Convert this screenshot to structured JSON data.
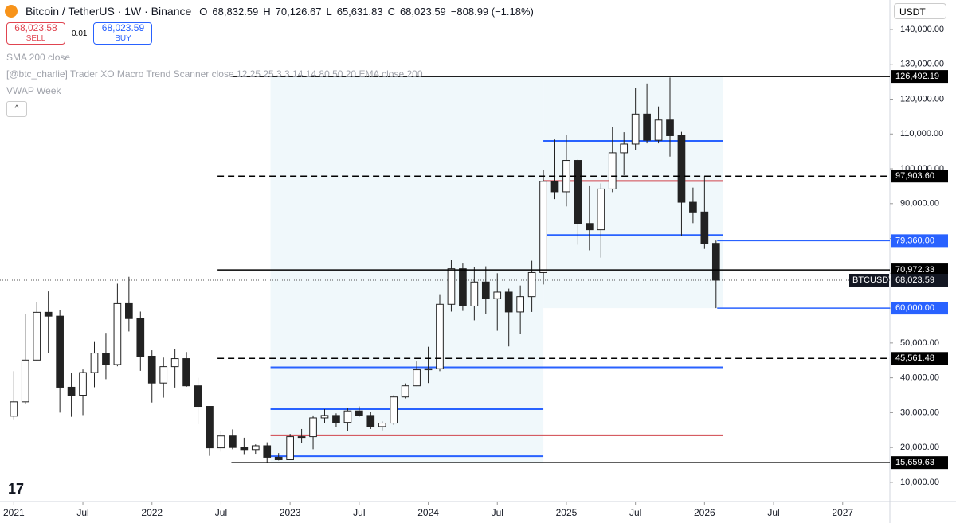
{
  "header": {
    "symbol": "Bitcoin / TetherUS · 1W · Binance",
    "open_label": "O",
    "open": "68,832.59",
    "high_label": "H",
    "high": "70,126.67",
    "low_label": "L",
    "low": "65,631.83",
    "close_label": "C",
    "close": "68,023.59",
    "change": "−808.99 (−1.18%)"
  },
  "trade": {
    "sell_price": "68,023.58",
    "sell": "SELL",
    "spread": "0.01",
    "buy_price": "68,023.59",
    "buy": "BUY"
  },
  "indicators": [
    "SMA 200 close",
    "[@btc_charlie] Trader XO Macro Trend Scanner close 12 25 25 3 3 14 14 80 50 20 EMA close 200",
    "VWAP Week"
  ],
  "currency": "USDT",
  "chart_data": {
    "type": "candlestick",
    "x": [
      0,
      1,
      2,
      3,
      4,
      5,
      6,
      7,
      8,
      9,
      10,
      11,
      12,
      13,
      14,
      15,
      16,
      17,
      18,
      19,
      20,
      21,
      22,
      23,
      24,
      25,
      26,
      27,
      28,
      29,
      30,
      31,
      32,
      33,
      34,
      35,
      36,
      37,
      38,
      39,
      40,
      41,
      42,
      43,
      44,
      45,
      46,
      47,
      48,
      49,
      50,
      51,
      52,
      53,
      54,
      55,
      56,
      57,
      58,
      59,
      60,
      61
    ],
    "open": [
      29000,
      33100,
      45100,
      58800,
      57700,
      37300,
      35000,
      41500,
      47100,
      43800,
      61300,
      57000,
      46200,
      38500,
      43200,
      45500,
      37700,
      31800,
      19900,
      23300,
      20000,
      19400,
      20500,
      17200,
      16500,
      23100,
      23100,
      28500,
      29200,
      27200,
      30500,
      29200,
      26000,
      27000,
      34500,
      37700,
      42300,
      42600,
      61100,
      71300,
      60600,
      67500,
      62700,
      64600,
      58900,
      63300,
      70200,
      96400,
      93400,
      102400,
      84300,
      82500,
      94200,
      104600,
      107100,
      115700,
      108200,
      114000,
      109500,
      90400,
      87600,
      78600
    ],
    "high": [
      41900,
      58300,
      61800,
      64800,
      59500,
      41300,
      42400,
      50500,
      52900,
      67000,
      69000,
      59000,
      47900,
      45800,
      48200,
      47400,
      40000,
      31900,
      24700,
      25200,
      22800,
      20900,
      21500,
      18400,
      23900,
      25300,
      29200,
      31000,
      29800,
      31400,
      31800,
      30200,
      27500,
      35000,
      38400,
      44700,
      48900,
      64000,
      73800,
      72800,
      71900,
      72000,
      70000,
      65600,
      66500,
      73600,
      99600,
      108400,
      109600,
      102700,
      95000,
      95800,
      111900,
      110500,
      123200,
      124500,
      117900,
      126200,
      110600,
      94600,
      97900,
      79400
    ],
    "low": [
      28100,
      32400,
      45000,
      47000,
      30000,
      28800,
      29300,
      37300,
      39600,
      43300,
      53300,
      42000,
      32900,
      34300,
      37200,
      37400,
      26700,
      17600,
      18800,
      19500,
      18100,
      18200,
      15500,
      16300,
      16500,
      21300,
      19500,
      26900,
      25800,
      24800,
      28800,
      25300,
      24900,
      26500,
      34100,
      37600,
      38500,
      41900,
      59000,
      59200,
      56500,
      58400,
      53500,
      49000,
      52500,
      58900,
      66800,
      91300,
      89200,
      78200,
      76600,
      74500,
      93300,
      98200,
      105300,
      107300,
      107300,
      103500,
      80600,
      84400,
      77000,
      60000
    ],
    "close": [
      33100,
      45100,
      58800,
      57700,
      37300,
      35000,
      41500,
      47100,
      43800,
      61300,
      57000,
      46200,
      38500,
      43200,
      45500,
      37700,
      31800,
      19900,
      23300,
      20000,
      19400,
      20500,
      17200,
      16500,
      23100,
      23100,
      28500,
      29200,
      27200,
      30500,
      29200,
      26000,
      27000,
      34500,
      37700,
      42300,
      42600,
      61100,
      71300,
      60600,
      67500,
      62700,
      64600,
      58900,
      63300,
      70200,
      96400,
      93400,
      102400,
      84300,
      82500,
      94200,
      104600,
      107100,
      115700,
      108200,
      114000,
      109500,
      90400,
      87600,
      78600,
      68023.59
    ],
    "up_color": "#ffffff",
    "down_color": "#222222",
    "xlim": [
      -1.2,
      76.1
    ],
    "ylim": [
      4500,
      148450
    ],
    "xticks": [
      {
        "value": 0,
        "label": "2021"
      },
      {
        "value": 6,
        "label": "Jul"
      },
      {
        "value": 12,
        "label": "2022"
      },
      {
        "value": 18,
        "label": "Jul"
      },
      {
        "value": 24,
        "label": "2023"
      },
      {
        "value": 30,
        "label": "Jul"
      },
      {
        "value": 36,
        "label": "2024"
      },
      {
        "value": 42,
        "label": "Jul"
      },
      {
        "value": 48,
        "label": "2025"
      },
      {
        "value": 54,
        "label": "Jul"
      },
      {
        "value": 60,
        "label": "2026"
      },
      {
        "value": 66,
        "label": "Jul"
      },
      {
        "value": 72,
        "label": "2027"
      }
    ],
    "yticks": [
      {
        "value": 10000,
        "label": "10,000.00"
      },
      {
        "value": 20000,
        "label": "20,000.00"
      },
      {
        "value": 30000,
        "label": "30,000.00"
      },
      {
        "value": 40000,
        "label": "40,000.00"
      },
      {
        "value": 50000,
        "label": "50,000.00"
      },
      {
        "value": 60000,
        "label": "60,000.00"
      },
      {
        "value": 70000,
        "label": "70,000.00"
      },
      {
        "value": 80000,
        "label": "80,000.00"
      },
      {
        "value": 90000,
        "label": "90,000.00"
      },
      {
        "value": 100000,
        "label": "100,000.00"
      },
      {
        "value": 110000,
        "label": "110,000.00"
      },
      {
        "value": 120000,
        "label": "120,000.00"
      },
      {
        "value": 130000,
        "label": "130,000.00"
      },
      {
        "value": 140000,
        "label": "140,000.00"
      }
    ],
    "zones": [
      {
        "from": 22.3,
        "to": 46,
        "low": 15659.63,
        "high": 126492.19,
        "color": "#e6f3f8"
      },
      {
        "from": 46,
        "to": 61.6,
        "low": 60000,
        "high": 126492.19,
        "color": "#e6f3f8"
      }
    ],
    "profile_lines": [
      {
        "value": 108000,
        "from": 46,
        "to": 61.6,
        "color": "#2962ff"
      },
      {
        "value": 96500,
        "from": 46,
        "to": 61.6,
        "color": "#d0454c"
      },
      {
        "value": 81000,
        "from": 46,
        "to": 61.6,
        "color": "#2962ff"
      },
      {
        "value": 43000,
        "from": 22.3,
        "to": 61.6,
        "color": "#2962ff"
      },
      {
        "value": 31000,
        "from": 22.3,
        "to": 46,
        "color": "#2962ff"
      },
      {
        "value": 23500,
        "from": 22.3,
        "to": 61.6,
        "color": "#d0454c"
      },
      {
        "value": 17500,
        "from": 22.3,
        "to": 46,
        "color": "#2962ff"
      }
    ],
    "levels": [
      {
        "value": 126492.19,
        "label": "126,492.19",
        "from": 18.9,
        "color": "#000000",
        "dash": "solid"
      },
      {
        "value": 97903.6,
        "label": "97,903.60",
        "from": 17.7,
        "color": "#000000",
        "dash": "dashed"
      },
      {
        "value": 79360,
        "label": "79,360.00",
        "from": 61.1,
        "color": "#2962ff",
        "dash": "solid"
      },
      {
        "value": 70972.33,
        "label": "70,972.33",
        "from": 17.7,
        "color": "#000000",
        "dash": "solid"
      },
      {
        "value": 60000,
        "label": "60,000.00",
        "from": 61.1,
        "color": "#2962ff",
        "dash": "solid"
      },
      {
        "value": 45561.48,
        "label": "45,561.48",
        "from": 17.7,
        "color": "#000000",
        "dash": "dashed"
      },
      {
        "value": 15659.63,
        "label": "15,659.63",
        "from": 18.9,
        "color": "#000000",
        "dash": "solid"
      }
    ],
    "last_price": {
      "value": 68023.59,
      "label": "68,023.59",
      "symbol": "BTCUSDT"
    }
  }
}
